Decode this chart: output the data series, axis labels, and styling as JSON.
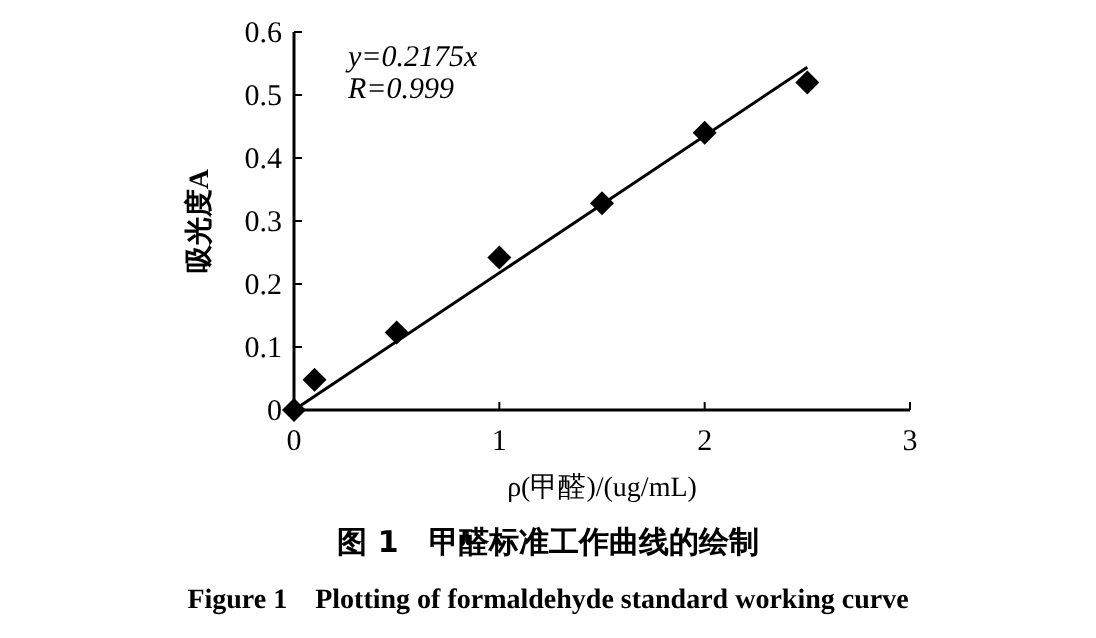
{
  "chart_data": {
    "type": "scatter",
    "title": "图 1　甲醛标准工作曲线的绘制",
    "subtitle": "Figure 1　Plotting of formaldehyde standard working curve",
    "xlabel": "ρ(甲醛)/(ug/mL)",
    "ylabel": "吸光度A",
    "annotations": [
      "y=0.2175x",
      "R=0.999"
    ],
    "xlim": [
      0,
      3
    ],
    "xticks": [
      0,
      1,
      2,
      3
    ],
    "ylim": [
      0,
      0.6
    ],
    "yticks": [
      0,
      0.1,
      0.2,
      0.3,
      0.4,
      0.5,
      0.6
    ],
    "series": [
      {
        "marker": "diamond",
        "color": "#000000",
        "x": [
          0,
          0.1,
          0.5,
          1,
          1.5,
          2,
          2.5
        ],
        "values": [
          0,
          0.048,
          0.123,
          0.242,
          0.328,
          0.44,
          0.52
        ]
      },
      {
        "type": "line",
        "color": "#000000",
        "x": [
          0,
          2.5
        ],
        "values": [
          0,
          0.544
        ]
      }
    ]
  }
}
